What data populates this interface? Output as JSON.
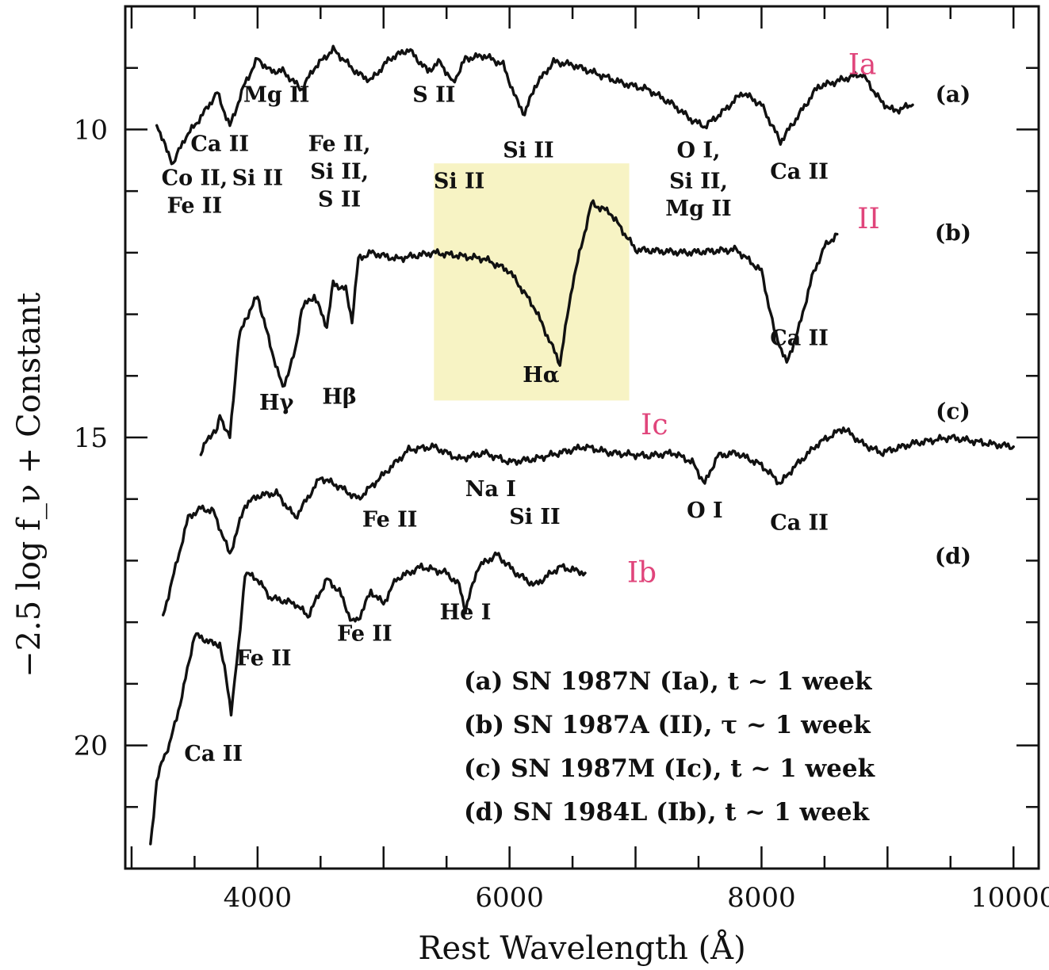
{
  "chart_data": {
    "type": "line",
    "xlabel": "Rest Wavelength (Å)",
    "ylabel": "−2.5 log f_ν + Constant",
    "xlim": [
      2950,
      10200
    ],
    "ylim": [
      8.0,
      22.0
    ],
    "y_inverted": true,
    "x_ticks": [
      4000,
      6000,
      8000,
      10000
    ],
    "x_tick_labels": [
      "4000",
      "6000",
      "8000",
      "10000"
    ],
    "y_ticks": [
      10,
      15,
      20
    ],
    "y_tick_labels": [
      "10",
      "15",
      "20"
    ],
    "series": [
      {
        "name": "(a) SN 1987N (Ia), t ~ 1 week",
        "tag": "(a)",
        "type_note": "Ia",
        "x": [
          3200,
          3280,
          3330,
          3420,
          3550,
          3680,
          3780,
          3900,
          4000,
          4100,
          4200,
          4350,
          4450,
          4600,
          4700,
          4800,
          4900,
          5050,
          5200,
          5350,
          5450,
          5550,
          5650,
          5800,
          5950,
          6050,
          6120,
          6200,
          6350,
          6500,
          6700,
          6900,
          7100,
          7300,
          7450,
          7550,
          7700,
          7850,
          8000,
          8150,
          8300,
          8450,
          8550,
          8700,
          8800,
          8950,
          9050,
          9200
        ],
        "y": [
          9.9,
          10.35,
          10.55,
          10.15,
          9.8,
          9.4,
          9.95,
          9.25,
          8.85,
          9.05,
          9.05,
          9.35,
          9.0,
          8.7,
          8.9,
          9.1,
          9.2,
          8.85,
          8.7,
          9.05,
          8.9,
          9.25,
          8.85,
          8.8,
          8.95,
          9.5,
          9.75,
          9.3,
          8.9,
          8.95,
          9.1,
          9.25,
          9.35,
          9.6,
          9.85,
          9.95,
          9.7,
          9.4,
          9.6,
          10.2,
          9.75,
          9.3,
          9.25,
          9.15,
          9.1,
          9.55,
          9.7,
          9.6
        ]
      },
      {
        "name": "(b) SN 1987A (II), τ ~ 1 week",
        "tag": "(b)",
        "type_note": "II",
        "x": [
          3550,
          3600,
          3680,
          3700,
          3750,
          3780,
          3850,
          3900,
          3950,
          4000,
          4050,
          4100,
          4200,
          4300,
          4350,
          4450,
          4550,
          4600,
          4700,
          4750,
          4800,
          4900,
          5100,
          5400,
          5800,
          6000,
          6200,
          6400,
          6500,
          6650,
          6800,
          7000,
          7400,
          7800,
          8000,
          8100,
          8200,
          8300,
          8400,
          8500,
          8600
        ],
        "y": [
          15.3,
          15.0,
          14.9,
          14.6,
          14.9,
          15.0,
          13.4,
          13.1,
          12.9,
          12.7,
          13.1,
          13.5,
          14.2,
          13.6,
          12.9,
          12.7,
          13.2,
          12.5,
          12.6,
          13.1,
          12.1,
          12.0,
          12.1,
          12.0,
          12.1,
          12.3,
          12.9,
          13.8,
          12.5,
          11.2,
          11.35,
          11.95,
          12.0,
          11.95,
          12.3,
          13.25,
          13.8,
          13.2,
          12.4,
          11.9,
          11.7
        ]
      },
      {
        "name": "(c) SN 1987M (Ic), t ~ 1 week",
        "tag": "(c)",
        "type_note": "Ic",
        "x": [
          3250,
          3350,
          3450,
          3550,
          3650,
          3780,
          3900,
          4000,
          4150,
          4300,
          4500,
          4650,
          4800,
          5000,
          5200,
          5400,
          5600,
          5800,
          6000,
          6200,
          6400,
          6600,
          6800,
          7100,
          7300,
          7450,
          7550,
          7650,
          7800,
          8000,
          8150,
          8250,
          8450,
          8650,
          8800,
          8950,
          9200,
          9500,
          9800,
          10000
        ],
        "y": [
          17.9,
          17.1,
          16.3,
          16.15,
          16.2,
          16.9,
          16.1,
          15.95,
          15.9,
          16.3,
          15.65,
          15.8,
          16.0,
          15.6,
          15.2,
          15.15,
          15.35,
          15.25,
          15.4,
          15.35,
          15.25,
          15.15,
          15.25,
          15.3,
          15.25,
          15.4,
          15.75,
          15.3,
          15.25,
          15.45,
          15.75,
          15.5,
          15.1,
          14.85,
          15.1,
          15.25,
          15.1,
          15.0,
          15.1,
          15.15
        ]
      },
      {
        "name": "(d) SN 1984L (Ib), t ~ 1 week",
        "tag": "(d)",
        "type_note": "Ib",
        "x": [
          3150,
          3200,
          3250,
          3300,
          3400,
          3500,
          3650,
          3700,
          3750,
          3790,
          3850,
          3900,
          4000,
          4100,
          4300,
          4400,
          4550,
          4650,
          4750,
          4800,
          4900,
          5000,
          5100,
          5300,
          5500,
          5600,
          5650,
          5750,
          5900,
          6050,
          6200,
          6400,
          6600
        ],
        "y": [
          21.6,
          20.6,
          20.2,
          20.0,
          19.2,
          18.2,
          18.35,
          18.35,
          18.9,
          19.45,
          18.4,
          17.2,
          17.3,
          17.6,
          17.7,
          17.9,
          17.3,
          17.5,
          18.0,
          17.95,
          17.5,
          17.7,
          17.3,
          17.1,
          17.2,
          17.4,
          17.8,
          17.1,
          16.9,
          17.2,
          17.4,
          17.1,
          17.2
        ]
      }
    ],
    "annotations": [
      {
        "text": "Co II,",
        "x": 3500,
        "y": 10.9
      },
      {
        "text": "Fe II",
        "x": 3500,
        "y": 11.35
      },
      {
        "text": "Ca II",
        "x": 3700,
        "y": 10.35
      },
      {
        "text": "Si II",
        "x": 4000,
        "y": 10.9
      },
      {
        "text": "Mg II",
        "x": 4150,
        "y": 9.55
      },
      {
        "text": "Fe II,",
        "x": 4650,
        "y": 10.35
      },
      {
        "text": "Si II,",
        "x": 4650,
        "y": 10.8
      },
      {
        "text": "S II",
        "x": 4650,
        "y": 11.25
      },
      {
        "text": "S II",
        "x": 5400,
        "y": 9.55
      },
      {
        "text": "Si II",
        "x": 6150,
        "y": 10.45
      },
      {
        "text": "Si II",
        "x": 5600,
        "y": 10.95
      },
      {
        "text": "O I,",
        "x": 7500,
        "y": 10.45
      },
      {
        "text": "Si II,",
        "x": 7500,
        "y": 10.95
      },
      {
        "text": "Mg II",
        "x": 7500,
        "y": 11.4
      },
      {
        "text": "Ca II",
        "x": 8300,
        "y": 10.8
      },
      {
        "text": "Hα",
        "x": 6250,
        "y": 14.1
      },
      {
        "text": "Ca II",
        "x": 8300,
        "y": 13.5
      },
      {
        "text": "Hγ",
        "x": 4150,
        "y": 14.55
      },
      {
        "text": "Hβ",
        "x": 4650,
        "y": 14.45
      },
      {
        "text": "Na I",
        "x": 5850,
        "y": 15.95
      },
      {
        "text": "Fe II",
        "x": 5050,
        "y": 16.45
      },
      {
        "text": "Si II",
        "x": 6200,
        "y": 16.4
      },
      {
        "text": "O I",
        "x": 7550,
        "y": 16.3
      },
      {
        "text": "Ca II",
        "x": 8300,
        "y": 16.5
      },
      {
        "text": "He I",
        "x": 5650,
        "y": 17.95
      },
      {
        "text": "Fe II",
        "x": 4850,
        "y": 18.3
      },
      {
        "text": "Fe II",
        "x": 4050,
        "y": 18.7
      },
      {
        "text": "Ca II",
        "x": 3650,
        "y": 20.25
      }
    ],
    "curve_tags": [
      {
        "text": "(a)",
        "x": 9520,
        "y": 9.55
      },
      {
        "text": "(b)",
        "x": 9520,
        "y": 11.8
      },
      {
        "text": "(c)",
        "x": 9520,
        "y": 14.7
      },
      {
        "text": "(d)",
        "x": 9520,
        "y": 17.05
      }
    ],
    "handwritten_labels": [
      {
        "text": "Ia",
        "x": 8800,
        "y": 9.1
      },
      {
        "text": "II",
        "x": 8850,
        "y": 11.6
      },
      {
        "text": "Ic",
        "x": 7150,
        "y": 14.95
      },
      {
        "text": "Ib",
        "x": 7050,
        "y": 17.35
      }
    ],
    "highlight_box": {
      "x_range": [
        5400,
        6950
      ],
      "y_range": [
        10.55,
        14.4
      ],
      "color": "#f7f3c4"
    },
    "legend": {
      "placement": "lower-right",
      "entries": [
        "(a) SN 1987N (Ia), t ~ 1 week",
        "(b) SN 1987A (II), τ ~ 1 week",
        "(c) SN 1987M (Ic), t ~ 1 week",
        "(d) SN 1984L (Ib), t ~ 1 week"
      ]
    },
    "colors": {
      "line": "#111111",
      "handwriting": "#e0457b",
      "highlight": "#f7f3c4"
    }
  }
}
